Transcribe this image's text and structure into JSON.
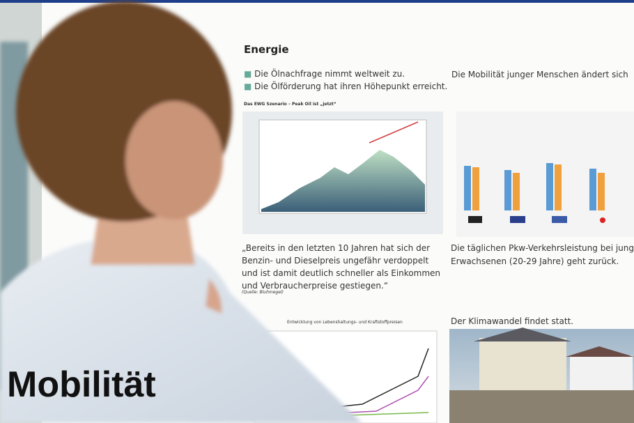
{
  "overlay_title": "Mobilität",
  "poster": {
    "section_title": "Energie",
    "bullets": [
      "Die Ölnachfrage nimmt weltweit zu.",
      "Die Ölförderung hat ihren Höhepunkt erreicht."
    ],
    "chart_title": "Das EWG Szenario – Peak Oil ist „jetzt“",
    "quote_lines": [
      "„Bereits in den letzten 10 Jahren hat sich der",
      "Benzin- und Dieselpreis ungefähr verdoppelt",
      "und ist damit deutlich schneller als Einkommen",
      "und Verbraucherpreise gestiegen.“"
    ],
    "quote_source": "(Quelle: Bluhmegel)",
    "lower_chart_title": "Entwicklung von Lebenshaltungs- und Kraftstoffpreisen",
    "right_heading": "Die Mobilität junger Menschen ändert sich",
    "right_text_lines": [
      "Die täglichen Pkw-Verkehrsleistung bei jungen",
      "Erwachsenen (20-29 Jahre) geht zurück."
    ],
    "climate_heading": "Der Klimawandel findet statt."
  }
}
